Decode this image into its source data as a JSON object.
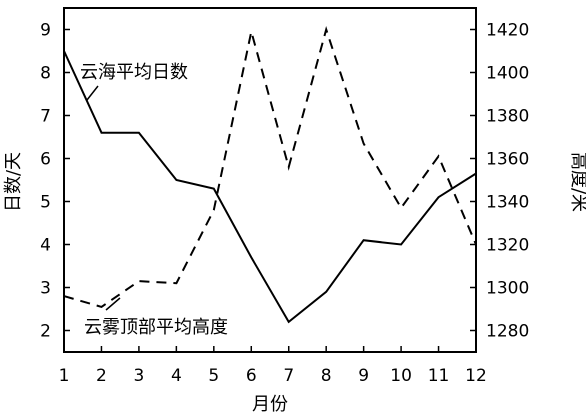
{
  "chart_data": {
    "type": "line",
    "x": [
      1,
      2,
      3,
      4,
      5,
      6,
      7,
      8,
      9,
      10,
      11,
      12
    ],
    "xlabel": "月份",
    "xlim": [
      1,
      12
    ],
    "grid": false,
    "left_axis": {
      "label": "日数/天",
      "lim": [
        1.5,
        9.5
      ],
      "ticks": [
        "2",
        "3",
        "4",
        "5",
        "6",
        "7",
        "8",
        "9"
      ]
    },
    "right_axis": {
      "label": "高度/米",
      "lim": [
        1270,
        1430
      ],
      "ticks": [
        "1280",
        "1300",
        "1320",
        "1340",
        "1360",
        "1380",
        "1400",
        "1420"
      ]
    },
    "x_ticks": [
      "1",
      "2",
      "3",
      "4",
      "5",
      "6",
      "7",
      "8",
      "9",
      "10",
      "11",
      "12"
    ],
    "series": [
      {
        "name": "云海平均日数",
        "axis": "left",
        "style": "solid",
        "values": [
          8.5,
          6.6,
          6.6,
          5.5,
          5.3,
          3.7,
          2.2,
          2.9,
          4.1,
          4.0,
          5.1,
          5.65
        ]
      },
      {
        "name": "云雾顶部平均高度",
        "axis": "right",
        "style": "dashed",
        "values": [
          1296,
          1291,
          1303,
          1302,
          1336,
          1419,
          1356,
          1420,
          1367,
          1337,
          1361,
          1320
        ]
      }
    ]
  }
}
